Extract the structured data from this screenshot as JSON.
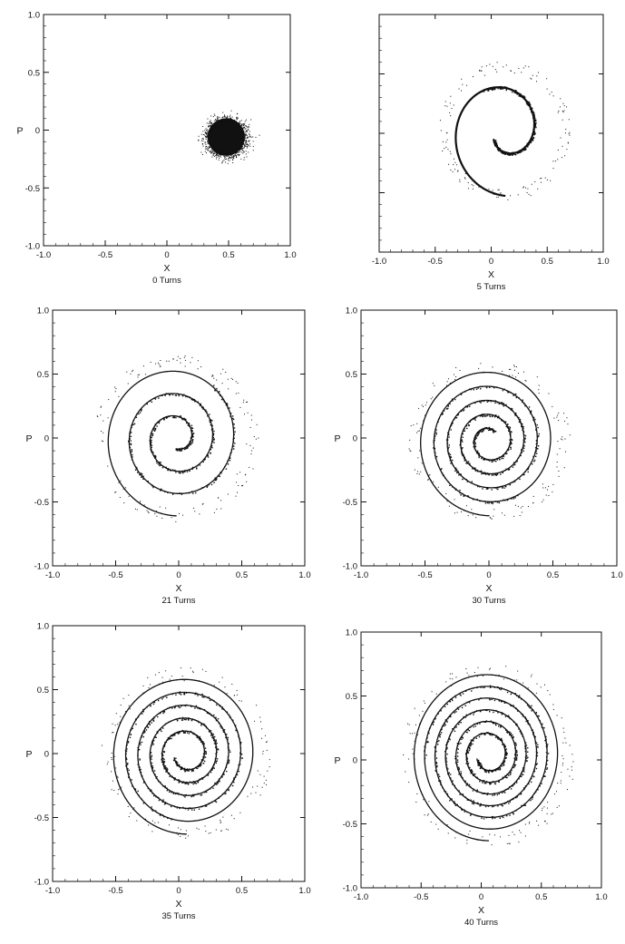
{
  "chart_data": [
    {
      "type": "scatter",
      "title": "0 Turns",
      "xlabel": "X",
      "ylabel": "P",
      "xlim": [
        -1.0,
        1.0
      ],
      "ylim": [
        -1.0,
        1.0
      ],
      "xticks": [
        "-1.0",
        "-0.5",
        "0",
        "0.5",
        "1.0"
      ],
      "yticks": [
        "-1.0",
        "-0.5",
        "0",
        "0.5",
        "1.0"
      ],
      "grid": false,
      "distribution": {
        "shape": "blob",
        "center": [
          0.48,
          -0.06
        ],
        "radius": 0.16
      }
    },
    {
      "type": "scatter",
      "title": "5 Turns",
      "xlabel": "X",
      "ylabel": "",
      "xlim": [
        -1.0,
        1.0
      ],
      "ylim": [
        -1.0,
        1.0
      ],
      "xticks": [
        "-1.0",
        "-0.5",
        "0",
        "0.5",
        "1.0"
      ],
      "yticks": [],
      "grid": false,
      "distribution": {
        "shape": "spiral",
        "center": [
          0.12,
          0.02
        ],
        "r_start": 0.52,
        "r_end": 0.12,
        "turns": 1.15,
        "arms": 1
      }
    },
    {
      "type": "scatter",
      "title": "21 Turns",
      "xlabel": "X",
      "ylabel": "P",
      "xlim": [
        -1.0,
        1.0
      ],
      "ylim": [
        -1.0,
        1.0
      ],
      "xticks": [
        "-1.0",
        "-0.5",
        "0",
        "0.5",
        "1.0"
      ],
      "yticks": [
        "-1.0",
        "-0.5",
        "0",
        "0.5",
        "1.0"
      ],
      "grid": false,
      "distribution": {
        "shape": "spiral",
        "center": [
          -0.02,
          0.0
        ],
        "r_start": 0.58,
        "r_end": 0.08,
        "turns": 3.0,
        "arms": 1
      }
    },
    {
      "type": "scatter",
      "title": "30 Turns",
      "xlabel": "X",
      "ylabel": "P",
      "xlim": [
        -1.0,
        1.0
      ],
      "ylim": [
        -1.0,
        1.0
      ],
      "xticks": [
        "-1.0",
        "-0.5",
        "0",
        "0.5",
        "1.0"
      ],
      "yticks": [
        "-1.0",
        "-0.5",
        "0",
        "0.5",
        "1.0"
      ],
      "grid": false,
      "distribution": {
        "shape": "spiral",
        "center": [
          0.0,
          -0.02
        ],
        "r_start": 0.56,
        "r_end": 0.08,
        "turns": 4.6,
        "arms": 1
      }
    },
    {
      "type": "scatter",
      "title": "35 Turns",
      "xlabel": "X",
      "ylabel": "P",
      "xlim": [
        -1.0,
        1.0
      ],
      "ylim": [
        -1.0,
        1.0
      ],
      "xticks": [
        "-1.0",
        "-0.5",
        "0",
        "0.5",
        "1.0"
      ],
      "yticks": [
        "-1.0",
        "-0.5",
        "0",
        "0.5",
        "1.0"
      ],
      "grid": false,
      "distribution": {
        "shape": "spiral",
        "center": [
          0.06,
          0.0
        ],
        "r_start": 0.6,
        "r_end": 0.1,
        "turns": 5.2,
        "arms": 1
      }
    },
    {
      "type": "scatter",
      "title": "40 Turns",
      "xlabel": "X",
      "ylabel": "P",
      "xlim": [
        -1.0,
        1.0
      ],
      "ylim": [
        -1.0,
        1.0
      ],
      "xticks": [
        "-1.0",
        "-0.5",
        "0",
        "0.5",
        "1.0"
      ],
      "yticks": [
        "-1.0",
        "-0.5",
        "0",
        "0.5",
        "1.0"
      ],
      "grid": false,
      "distribution": {
        "shape": "spiral",
        "center": [
          0.06,
          0.04
        ],
        "r_start": 0.64,
        "r_end": 0.1,
        "turns": 6.2,
        "arms": 1
      }
    }
  ],
  "colors": {
    "ink": "#111111",
    "background": "#ffffff"
  }
}
